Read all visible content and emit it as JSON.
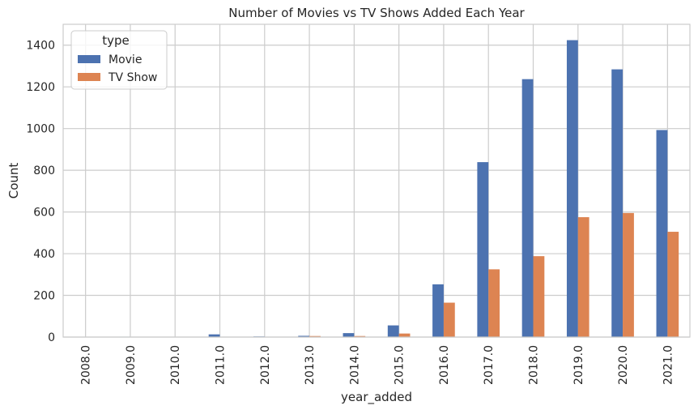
{
  "chart_data": {
    "type": "bar",
    "title": "Number of Movies vs TV Shows Added Each Year",
    "xlabel": "year_added",
    "ylabel": "Count",
    "categories": [
      "2008.0",
      "2009.0",
      "2010.0",
      "2011.0",
      "2012.0",
      "2013.0",
      "2014.0",
      "2015.0",
      "2016.0",
      "2017.0",
      "2018.0",
      "2019.0",
      "2020.0",
      "2021.0"
    ],
    "series": [
      {
        "name": "Movie",
        "color": "#4c72b0",
        "values": [
          1,
          2,
          1,
          13,
          3,
          6,
          19,
          56,
          253,
          839,
          1237,
          1424,
          1284,
          993
        ]
      },
      {
        "name": "TV Show",
        "color": "#dd8452",
        "values": [
          1,
          0,
          0,
          0,
          0,
          5,
          5,
          17,
          165,
          325,
          388,
          575,
          595,
          505
        ]
      }
    ],
    "ylim": [
      0,
      1500
    ],
    "yticks": [
      0,
      200,
      400,
      600,
      800,
      1000,
      1200,
      1400
    ],
    "legend": {
      "title": "type",
      "placement": "top-left"
    },
    "grid": true
  }
}
